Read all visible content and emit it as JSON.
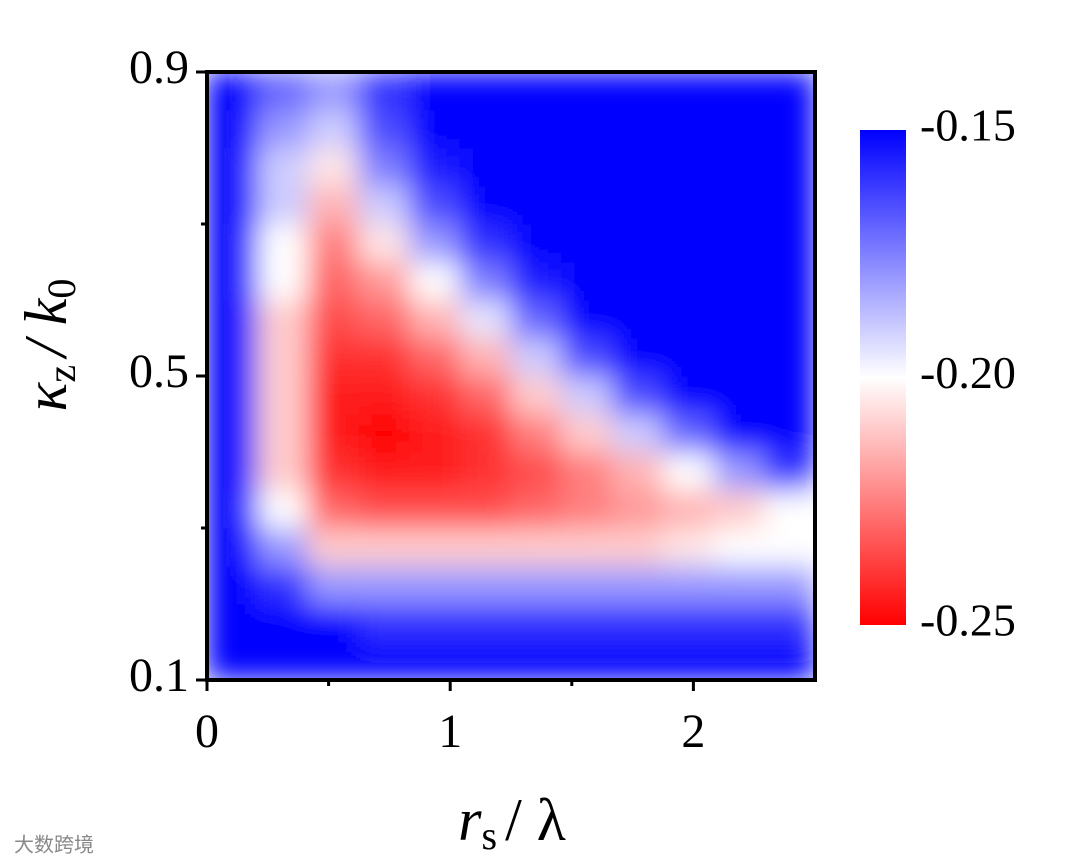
{
  "chart_data": {
    "type": "heatmap",
    "x_label_parts": [
      "r",
      "s",
      "/ λ"
    ],
    "y_label_parts": [
      "κ",
      "z",
      "/ k",
      "0"
    ],
    "xlim": [
      0,
      2.5
    ],
    "ylim": [
      0.1,
      0.9
    ],
    "xticks": [
      0,
      1,
      2
    ],
    "yticks": [
      0.1,
      0.5,
      0.9
    ],
    "xminorticks": [
      0.5,
      1.5
    ],
    "yminorticks": [
      0.3,
      0.7
    ],
    "x": [
      0.104,
      0.313,
      0.521,
      0.729,
      0.938,
      1.146,
      1.354,
      1.563,
      1.771,
      1.979,
      2.188,
      2.396
    ],
    "y": [
      0.125,
      0.175,
      0.225,
      0.275,
      0.325,
      0.375,
      0.425,
      0.475,
      0.525,
      0.575,
      0.625,
      0.675,
      0.725,
      0.775,
      0.825,
      0.875
    ],
    "z": [
      [
        -0.14,
        -0.14,
        -0.14,
        -0.14,
        -0.14,
        -0.14,
        -0.14,
        -0.14,
        -0.14,
        -0.14,
        -0.14,
        -0.14
      ],
      [
        -0.14,
        -0.14,
        -0.15,
        -0.16,
        -0.16,
        -0.16,
        -0.16,
        -0.16,
        -0.16,
        -0.16,
        -0.16,
        -0.16
      ],
      [
        -0.14,
        -0.16,
        -0.18,
        -0.18,
        -0.18,
        -0.18,
        -0.18,
        -0.18,
        -0.18,
        -0.18,
        -0.18,
        -0.18
      ],
      [
        -0.14,
        -0.18,
        -0.21,
        -0.21,
        -0.21,
        -0.21,
        -0.21,
        -0.21,
        -0.21,
        -0.205,
        -0.2,
        -0.2
      ],
      [
        -0.14,
        -0.2,
        -0.23,
        -0.235,
        -0.235,
        -0.235,
        -0.23,
        -0.225,
        -0.22,
        -0.215,
        -0.21,
        -0.2
      ],
      [
        -0.14,
        -0.21,
        -0.24,
        -0.245,
        -0.245,
        -0.24,
        -0.235,
        -0.225,
        -0.215,
        -0.2,
        -0.18,
        -0.16
      ],
      [
        -0.14,
        -0.21,
        -0.245,
        -0.25,
        -0.245,
        -0.24,
        -0.225,
        -0.21,
        -0.19,
        -0.17,
        -0.15,
        -0.14
      ],
      [
        -0.14,
        -0.21,
        -0.245,
        -0.245,
        -0.24,
        -0.23,
        -0.21,
        -0.19,
        -0.165,
        -0.15,
        -0.14,
        -0.14
      ],
      [
        -0.14,
        -0.21,
        -0.24,
        -0.24,
        -0.23,
        -0.215,
        -0.19,
        -0.165,
        -0.15,
        -0.14,
        -0.14,
        -0.14
      ],
      [
        -0.14,
        -0.21,
        -0.235,
        -0.23,
        -0.215,
        -0.195,
        -0.17,
        -0.15,
        -0.14,
        -0.14,
        -0.14,
        -0.14
      ],
      [
        -0.14,
        -0.2,
        -0.23,
        -0.22,
        -0.2,
        -0.175,
        -0.155,
        -0.14,
        -0.14,
        -0.14,
        -0.14,
        -0.14
      ],
      [
        -0.14,
        -0.2,
        -0.225,
        -0.205,
        -0.18,
        -0.16,
        -0.14,
        -0.14,
        -0.14,
        -0.14,
        -0.14,
        -0.14
      ],
      [
        -0.14,
        -0.19,
        -0.215,
        -0.19,
        -0.165,
        -0.15,
        -0.14,
        -0.14,
        -0.14,
        -0.14,
        -0.14,
        -0.14
      ],
      [
        -0.14,
        -0.19,
        -0.205,
        -0.175,
        -0.155,
        -0.14,
        -0.14,
        -0.14,
        -0.14,
        -0.14,
        -0.14,
        -0.14
      ],
      [
        -0.14,
        -0.18,
        -0.19,
        -0.165,
        -0.15,
        -0.14,
        -0.14,
        -0.14,
        -0.14,
        -0.14,
        -0.14,
        -0.14
      ],
      [
        -0.14,
        -0.17,
        -0.18,
        -0.16,
        -0.14,
        -0.14,
        -0.14,
        -0.14,
        -0.14,
        -0.14,
        -0.14,
        -0.14
      ]
    ],
    "colorbar": {
      "zlim": [
        -0.25,
        -0.15
      ],
      "ticks": [
        -0.15,
        {
          "value": -0.2,
          "label": "-0.20"
        },
        -0.25
      ],
      "colormap": [
        "#ff0000",
        "#ffffff",
        "#0000ff"
      ]
    }
  },
  "watermark": "大数跨境"
}
